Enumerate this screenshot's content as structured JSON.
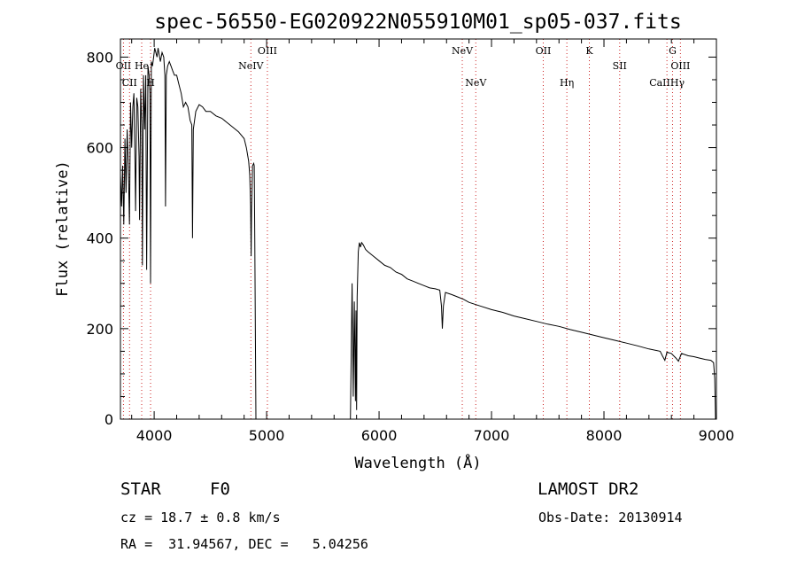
{
  "chart_data": {
    "type": "line",
    "title": "spec-56550-EG020922N055910M01_sp05-037.fits",
    "xlabel": "Wavelength (Å)",
    "ylabel": "Flux (relative)",
    "xlim": [
      3700,
      9000
    ],
    "ylim": [
      0,
      840
    ],
    "xticks": [
      4000,
      5000,
      6000,
      7000,
      8000,
      9000
    ],
    "yticks": [
      0,
      200,
      400,
      600,
      800
    ],
    "grid": false,
    "series": [
      {
        "points": [
          [
            3700,
            540
          ],
          [
            3710,
            470
          ],
          [
            3720,
            560
          ],
          [
            3730,
            430
          ],
          [
            3740,
            620
          ],
          [
            3750,
            500
          ],
          [
            3760,
            640
          ],
          [
            3770,
            560
          ],
          [
            3780,
            430
          ],
          [
            3790,
            700
          ],
          [
            3800,
            600
          ],
          [
            3810,
            690
          ],
          [
            3820,
            720
          ],
          [
            3830,
            560
          ],
          [
            3835,
            460
          ],
          [
            3845,
            710
          ],
          [
            3855,
            690
          ],
          [
            3865,
            580
          ],
          [
            3870,
            440
          ],
          [
            3880,
            730
          ],
          [
            3890,
            640
          ],
          [
            3895,
            340
          ],
          [
            3905,
            760
          ],
          [
            3915,
            640
          ],
          [
            3925,
            760
          ],
          [
            3933,
            330
          ],
          [
            3945,
            780
          ],
          [
            3955,
            760
          ],
          [
            3962,
            720
          ],
          [
            3968,
            300
          ],
          [
            3975,
            790
          ],
          [
            3985,
            780
          ],
          [
            3995,
            800
          ],
          [
            4005,
            820
          ],
          [
            4015,
            810
          ],
          [
            4025,
            800
          ],
          [
            4035,
            820
          ],
          [
            4045,
            805
          ],
          [
            4055,
            790
          ],
          [
            4070,
            810
          ],
          [
            4085,
            800
          ],
          [
            4095,
            760
          ],
          [
            4101,
            470
          ],
          [
            4108,
            760
          ],
          [
            4120,
            780
          ],
          [
            4135,
            790
          ],
          [
            4150,
            780
          ],
          [
            4165,
            770
          ],
          [
            4180,
            760
          ],
          [
            4200,
            760
          ],
          [
            4220,
            740
          ],
          [
            4240,
            720
          ],
          [
            4260,
            690
          ],
          [
            4280,
            700
          ],
          [
            4300,
            690
          ],
          [
            4320,
            660
          ],
          [
            4335,
            650
          ],
          [
            4341,
            400
          ],
          [
            4348,
            640
          ],
          [
            4370,
            680
          ],
          [
            4400,
            695
          ],
          [
            4430,
            690
          ],
          [
            4460,
            680
          ],
          [
            4500,
            680
          ],
          [
            4550,
            670
          ],
          [
            4600,
            665
          ],
          [
            4650,
            655
          ],
          [
            4700,
            645
          ],
          [
            4750,
            635
          ],
          [
            4800,
            620
          ],
          [
            4820,
            600
          ],
          [
            4840,
            570
          ],
          [
            4850,
            540
          ],
          [
            4858,
            470
          ],
          [
            4862,
            360
          ],
          [
            4866,
            470
          ],
          [
            4875,
            560
          ],
          [
            4885,
            565
          ],
          [
            4890,
            560
          ],
          [
            4895,
            400
          ],
          [
            4905,
            0
          ],
          [
            4930,
            0
          ],
          [
            5745,
            0
          ],
          [
            5760,
            300
          ],
          [
            5770,
            50
          ],
          [
            5780,
            260
          ],
          [
            5790,
            40
          ],
          [
            5795,
            240
          ],
          [
            5800,
            20
          ],
          [
            5805,
            270
          ],
          [
            5815,
            370
          ],
          [
            5825,
            390
          ],
          [
            5835,
            380
          ],
          [
            5845,
            390
          ],
          [
            5860,
            385
          ],
          [
            5880,
            375
          ],
          [
            5900,
            370
          ],
          [
            5950,
            360
          ],
          [
            6000,
            350
          ],
          [
            6050,
            340
          ],
          [
            6100,
            335
          ],
          [
            6150,
            325
          ],
          [
            6200,
            320
          ],
          [
            6250,
            310
          ],
          [
            6300,
            305
          ],
          [
            6350,
            300
          ],
          [
            6400,
            295
          ],
          [
            6450,
            290
          ],
          [
            6500,
            288
          ],
          [
            6540,
            285
          ],
          [
            6555,
            250
          ],
          [
            6563,
            200
          ],
          [
            6572,
            250
          ],
          [
            6590,
            280
          ],
          [
            6650,
            275
          ],
          [
            6700,
            270
          ],
          [
            6750,
            265
          ],
          [
            6800,
            258
          ],
          [
            6900,
            250
          ],
          [
            7000,
            242
          ],
          [
            7100,
            236
          ],
          [
            7200,
            228
          ],
          [
            7300,
            222
          ],
          [
            7400,
            216
          ],
          [
            7500,
            210
          ],
          [
            7600,
            205
          ],
          [
            7700,
            198
          ],
          [
            7800,
            192
          ],
          [
            7900,
            186
          ],
          [
            8000,
            180
          ],
          [
            8100,
            174
          ],
          [
            8200,
            168
          ],
          [
            8300,
            162
          ],
          [
            8400,
            155
          ],
          [
            8500,
            150
          ],
          [
            8520,
            140
          ],
          [
            8542,
            130
          ],
          [
            8560,
            148
          ],
          [
            8600,
            145
          ],
          [
            8640,
            135
          ],
          [
            8662,
            128
          ],
          [
            8690,
            145
          ],
          [
            8750,
            140
          ],
          [
            8800,
            138
          ],
          [
            8850,
            135
          ],
          [
            8900,
            132
          ],
          [
            8950,
            130
          ],
          [
            8975,
            125
          ],
          [
            8985,
            90
          ],
          [
            8992,
            0
          ]
        ]
      }
    ],
    "emission_lines": [
      {
        "label": "OII",
        "wavelength": 3727,
        "row": "upper"
      },
      {
        "label": "He",
        "wavelength": 3889,
        "row": "upper"
      },
      {
        "label": "CII",
        "wavelength": 3781,
        "row": "lower"
      },
      {
        "label": "H",
        "wavelength": 3968,
        "row": "lower"
      },
      {
        "label": "OIII",
        "wavelength": 5007,
        "row": "top"
      },
      {
        "label": "NeIV",
        "wavelength": 4860,
        "row": "upper"
      },
      {
        "label": "NeV",
        "wavelength": 6740,
        "row": "top"
      },
      {
        "label": "NeV",
        "wavelength": 6860,
        "row": "lower"
      },
      {
        "label": "OII",
        "wavelength": 7460,
        "row": "top"
      },
      {
        "label": "Hη",
        "wavelength": 7670,
        "row": "lower"
      },
      {
        "label": "K",
        "wavelength": 7870,
        "row": "top"
      },
      {
        "label": "SII",
        "wavelength": 8140,
        "row": "upper"
      },
      {
        "label": "G",
        "wavelength": 8610,
        "row": "top"
      },
      {
        "label": "OIII",
        "wavelength": 8680,
        "row": "upper"
      },
      {
        "label": "CaIIHγ",
        "wavelength": 8560,
        "row": "lower"
      }
    ],
    "emission_line_color": "#cc2222",
    "line_color": "#000000"
  },
  "footer": {
    "object_class": "STAR",
    "subclass": "F0",
    "survey": "LAMOST DR2",
    "redshift": "cz = 18.7 ± 0.8 km/s",
    "obs_date": "Obs-Date: 20130914",
    "coordinates": "RA =  31.94567, DEC =   5.04256"
  }
}
